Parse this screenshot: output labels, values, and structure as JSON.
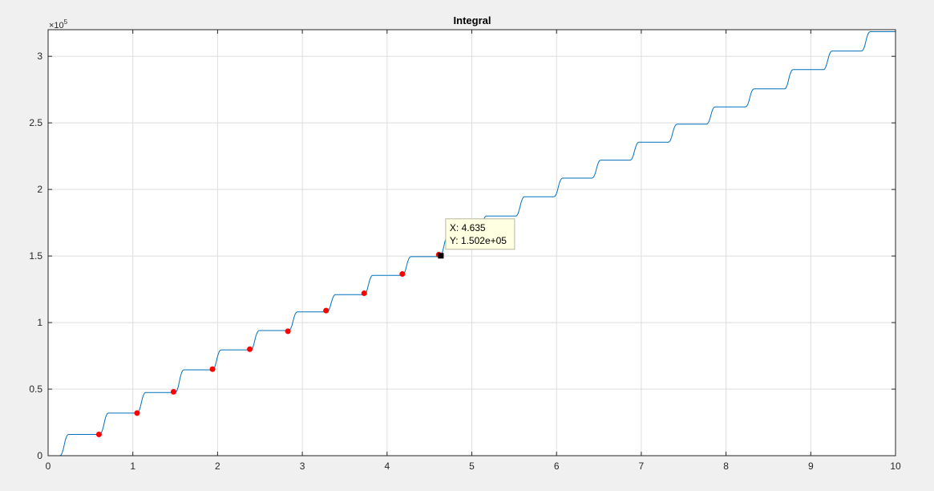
{
  "chart_data": {
    "type": "line",
    "title": "Integral",
    "xlabel": "",
    "ylabel": "",
    "y_exponent_base": "×10",
    "y_exponent_power": "5",
    "xlim": [
      0,
      10
    ],
    "ylim": [
      0,
      320000
    ],
    "x_ticks": [
      0,
      1,
      2,
      3,
      4,
      5,
      6,
      7,
      8,
      9,
      10
    ],
    "x_tick_labels": [
      "0",
      "1",
      "2",
      "3",
      "4",
      "5",
      "6",
      "7",
      "8",
      "9",
      "10"
    ],
    "y_ticks": [
      0,
      50000,
      100000,
      150000,
      200000,
      250000,
      300000
    ],
    "y_tick_labels": [
      "0",
      "0.5",
      "1",
      "1.5",
      "2",
      "2.5",
      "3"
    ],
    "grid": true,
    "series": [
      {
        "color": "#0072bd",
        "steps": [
          {
            "x": 0.19,
            "y": 16000
          },
          {
            "x": 0.66,
            "y": 32000
          },
          {
            "x": 1.1,
            "y": 47500
          },
          {
            "x": 1.55,
            "y": 64500
          },
          {
            "x": 1.99,
            "y": 79500
          },
          {
            "x": 2.44,
            "y": 94000
          },
          {
            "x": 2.89,
            "y": 108000
          },
          {
            "x": 3.34,
            "y": 121000
          },
          {
            "x": 3.78,
            "y": 135500
          },
          {
            "x": 4.23,
            "y": 149500
          },
          {
            "x": 4.67,
            "y": 165000
          },
          {
            "x": 5.12,
            "y": 180000
          },
          {
            "x": 5.57,
            "y": 194500
          },
          {
            "x": 6.02,
            "y": 208500
          },
          {
            "x": 6.47,
            "y": 222000
          },
          {
            "x": 6.92,
            "y": 235500
          },
          {
            "x": 7.37,
            "y": 249000
          },
          {
            "x": 7.82,
            "y": 262000
          },
          {
            "x": 8.28,
            "y": 275500
          },
          {
            "x": 8.74,
            "y": 290000
          },
          {
            "x": 9.2,
            "y": 304000
          },
          {
            "x": 9.65,
            "y": 318500
          }
        ]
      }
    ],
    "markers": {
      "color": "#ff0000",
      "points": [
        {
          "x": 0.6,
          "y": 16000
        },
        {
          "x": 1.05,
          "y": 32000
        },
        {
          "x": 1.48,
          "y": 48000
        },
        {
          "x": 1.94,
          "y": 65000
        },
        {
          "x": 2.38,
          "y": 80000
        },
        {
          "x": 2.83,
          "y": 93500
        },
        {
          "x": 3.28,
          "y": 109000
        },
        {
          "x": 3.73,
          "y": 122000
        },
        {
          "x": 4.18,
          "y": 136500
        },
        {
          "x": 4.61,
          "y": 151000
        }
      ]
    },
    "datatip": {
      "x": 4.635,
      "y": 150200,
      "line1": "X: 4.635",
      "line2": "Y: 1.502e+05"
    }
  }
}
